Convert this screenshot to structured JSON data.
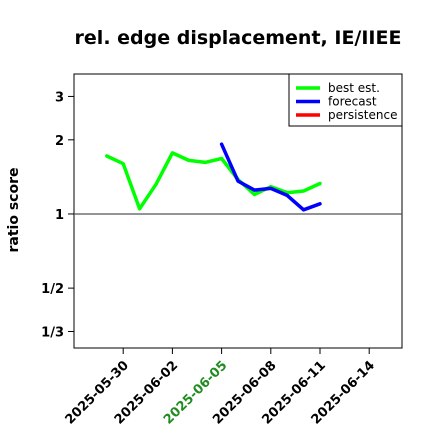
{
  "chart_data": {
    "type": "line",
    "title": "rel. edge displacement, IE/IIEE",
    "xlabel": "",
    "ylabel": "ratio score",
    "y_scale": "log",
    "ylim": [
      0.2857,
      3.7
    ],
    "xlim": [
      "2025-05-27",
      "2025-06-16"
    ],
    "y_ticks": [
      {
        "value": 0.3333,
        "label": "1/3"
      },
      {
        "value": 0.5,
        "label": "1/2"
      },
      {
        "value": 1,
        "label": "1"
      },
      {
        "value": 2,
        "label": "2"
      },
      {
        "value": 3,
        "label": "3"
      }
    ],
    "x_ticks": [
      {
        "date": "2025-05-30",
        "label": "2025-05-30",
        "color": "#000000"
      },
      {
        "date": "2025-06-02",
        "label": "2025-06-02",
        "color": "#000000"
      },
      {
        "date": "2025-06-05",
        "label": "2025-06-05",
        "color": "#228B22"
      },
      {
        "date": "2025-06-08",
        "label": "2025-06-08",
        "color": "#000000"
      },
      {
        "date": "2025-06-11",
        "label": "2025-06-11",
        "color": "#000000"
      },
      {
        "date": "2025-06-14",
        "label": "2025-06-14",
        "color": "#000000"
      }
    ],
    "reference_line": 1,
    "legend_position": "top-right",
    "series": [
      {
        "name": "best est.",
        "color": "#00ff00",
        "points": [
          [
            "2025-05-29",
            1.72
          ],
          [
            "2025-05-30",
            1.6
          ],
          [
            "2025-05-31",
            1.05
          ],
          [
            "2025-06-01",
            1.32
          ],
          [
            "2025-06-02",
            1.77
          ],
          [
            "2025-06-03",
            1.65
          ],
          [
            "2025-06-04",
            1.62
          ],
          [
            "2025-06-05",
            1.68
          ],
          [
            "2025-06-06",
            1.38
          ],
          [
            "2025-06-07",
            1.2
          ],
          [
            "2025-06-08",
            1.29
          ],
          [
            "2025-06-09",
            1.22
          ],
          [
            "2025-06-10",
            1.24
          ],
          [
            "2025-06-11",
            1.33
          ]
        ]
      },
      {
        "name": "forecast",
        "color": "#0000ff",
        "points": [
          [
            "2025-06-05",
            1.92
          ],
          [
            "2025-06-06",
            1.36
          ],
          [
            "2025-06-07",
            1.25
          ],
          [
            "2025-06-08",
            1.27
          ],
          [
            "2025-06-09",
            1.19
          ],
          [
            "2025-06-10",
            1.04
          ],
          [
            "2025-06-11",
            1.1
          ]
        ]
      },
      {
        "name": "persistence",
        "color": "#ff0000",
        "points": []
      }
    ]
  }
}
